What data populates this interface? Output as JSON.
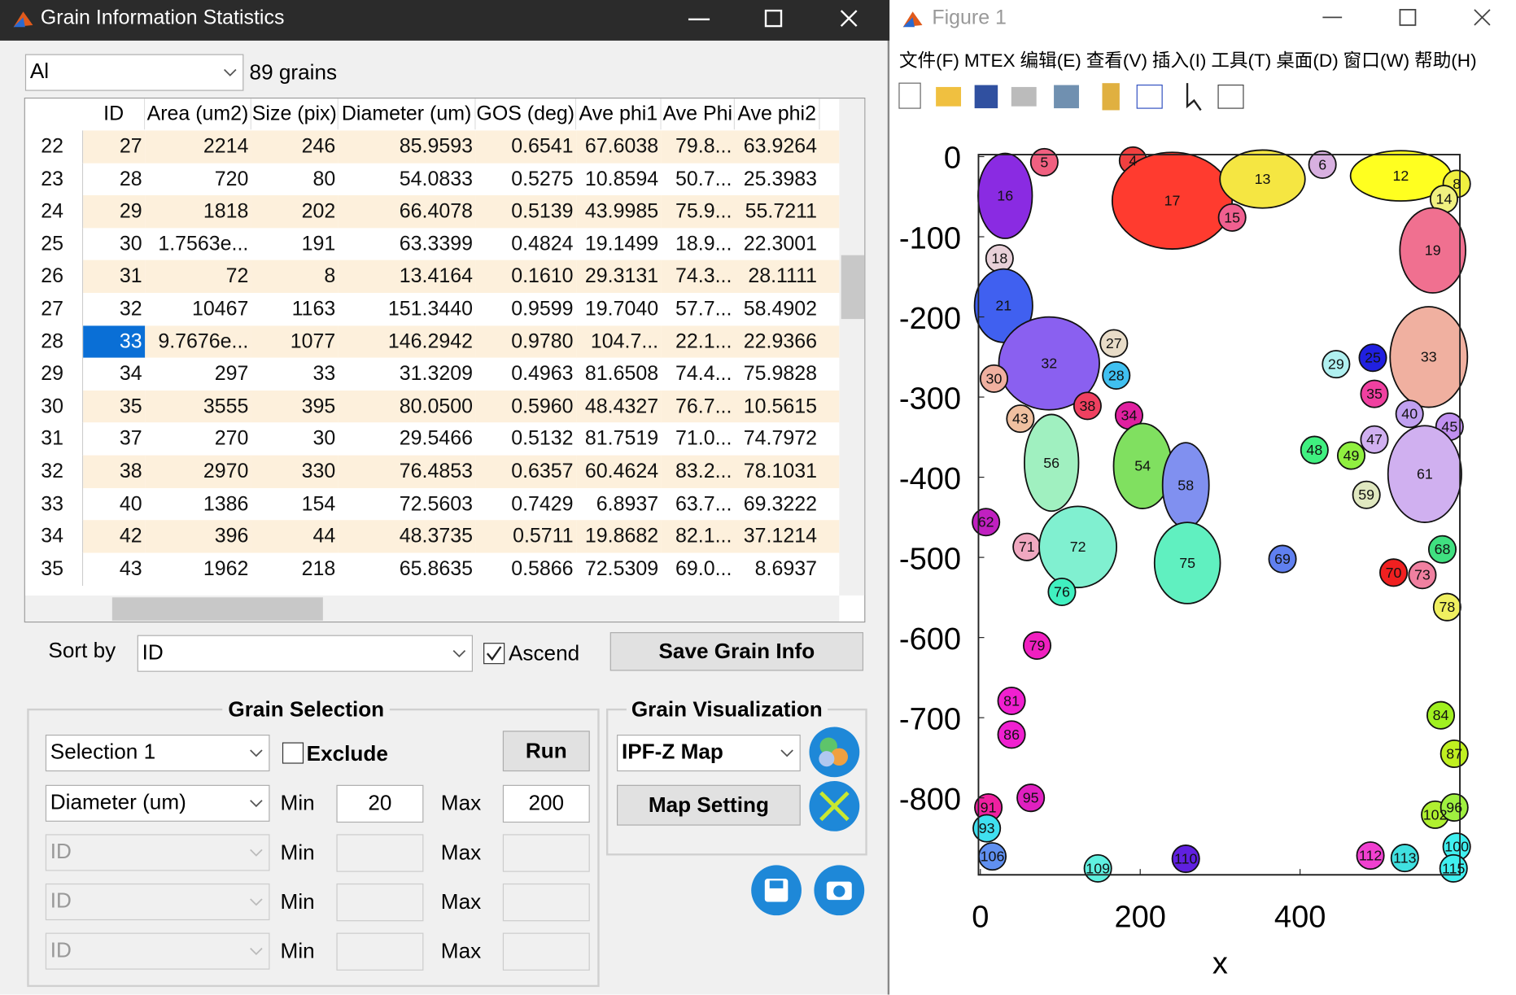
{
  "left_window": {
    "title": "Grain Information Statistics",
    "phase": "Al",
    "grain_count": "89 grains",
    "table": {
      "columns": [
        "ID",
        "Area (um2)",
        "Size (pix)",
        "Diameter (um)",
        "GOS (deg)",
        "Ave phi1",
        "Ave Phi",
        "Ave phi2"
      ],
      "rows": [
        [
          "22",
          "27",
          "2214",
          "246",
          "85.9593",
          "0.6541",
          "67.6038",
          "79.8...",
          "63.9264"
        ],
        [
          "23",
          "28",
          "720",
          "80",
          "54.0833",
          "0.5275",
          "10.8594",
          "50.7...",
          "25.3983"
        ],
        [
          "24",
          "29",
          "1818",
          "202",
          "66.4078",
          "0.5139",
          "43.9985",
          "75.9...",
          "55.7211"
        ],
        [
          "25",
          "30",
          "1.7563e...",
          "191",
          "63.3399",
          "0.4824",
          "19.1499",
          "18.9...",
          "22.3001"
        ],
        [
          "26",
          "31",
          "72",
          "8",
          "13.4164",
          "0.1610",
          "29.3131",
          "74.3...",
          "28.1111"
        ],
        [
          "27",
          "32",
          "10467",
          "1163",
          "151.3440",
          "0.9599",
          "19.7040",
          "57.7...",
          "58.4902"
        ],
        [
          "28",
          "33",
          "9.7676e...",
          "1077",
          "146.2942",
          "0.9780",
          "104.7...",
          "22.1...",
          "22.9366"
        ],
        [
          "29",
          "34",
          "297",
          "33",
          "31.3209",
          "0.4963",
          "81.6508",
          "74.4...",
          "75.9828"
        ],
        [
          "30",
          "35",
          "3555",
          "395",
          "80.0500",
          "0.5960",
          "48.4327",
          "76.7...",
          "10.5615"
        ],
        [
          "31",
          "37",
          "270",
          "30",
          "29.5466",
          "0.5132",
          "81.7519",
          "71.0...",
          "74.7972"
        ],
        [
          "32",
          "38",
          "2970",
          "330",
          "76.4853",
          "0.6357",
          "60.4624",
          "83.2...",
          "78.1031"
        ],
        [
          "33",
          "40",
          "1386",
          "154",
          "72.5603",
          "0.7429",
          "6.8937",
          "63.7...",
          "69.3222"
        ],
        [
          "34",
          "42",
          "396",
          "44",
          "48.3735",
          "0.5711",
          "19.8682",
          "82.1...",
          "37.1214"
        ],
        [
          "35",
          "43",
          "1962",
          "218",
          "65.8635",
          "0.5866",
          "72.5309",
          "69.0...",
          "8.6937"
        ]
      ]
    },
    "sort": {
      "label": "Sort by",
      "field": "ID",
      "ascend": "Ascend",
      "save": "Save Grain Info"
    },
    "selection": {
      "title": "Grain Selection",
      "preset": "Selection 1",
      "exclude": "Exclude",
      "run": "Run",
      "filters": [
        {
          "field": "Diameter (um)",
          "min_label": "Min",
          "min": 20,
          "max_label": "Max",
          "max": 200
        },
        {
          "field": "ID",
          "min_label": "Min",
          "max_label": "Max"
        },
        {
          "field": "ID",
          "min_label": "Min",
          "max_label": "Max"
        },
        {
          "field": "ID",
          "min_label": "Min",
          "max_label": "Max"
        }
      ]
    },
    "visualization": {
      "title": "Grain Visualization",
      "map": "IPF-Z Map",
      "setting": "Map Setting"
    }
  },
  "figure_window": {
    "title": "Figure 1",
    "menu": [
      "文件(F)",
      "MTEX",
      "编辑(E)",
      "查看(V)",
      "插入(I)",
      "工具(T)",
      "桌面(D)",
      "窗口(W)",
      "帮助(H)"
    ],
    "chart_data": {
      "type": "map",
      "xlabel": "x",
      "xlim": [
        0,
        600
      ],
      "ylim": [
        -896,
        0
      ],
      "xticks": [
        0,
        200,
        400
      ],
      "yticks": [
        0,
        -100,
        -200,
        -300,
        -400,
        -500,
        -600,
        -700,
        -800
      ],
      "grains": [
        {
          "label": "16",
          "x": 31,
          "y": -49,
          "color": "#8a2be2"
        },
        {
          "label": "5",
          "x": 80,
          "y": -7,
          "color": "#f06080"
        },
        {
          "label": "4",
          "x": 191,
          "y": -5,
          "color": "#f04040"
        },
        {
          "label": "17",
          "x": 240,
          "y": -55,
          "color": "#ff3b2f"
        },
        {
          "label": "13",
          "x": 353,
          "y": -28,
          "color": "#f5e642"
        },
        {
          "label": "6",
          "x": 428,
          "y": -10,
          "color": "#d8b0e0"
        },
        {
          "label": "12",
          "x": 526,
          "y": -24,
          "color": "#ffff20"
        },
        {
          "label": "8",
          "x": 596,
          "y": -34,
          "color": "#f0f040"
        },
        {
          "label": "14",
          "x": 580,
          "y": -53,
          "color": "#f0f080"
        },
        {
          "label": "15",
          "x": 315,
          "y": -76,
          "color": "#f06090"
        },
        {
          "label": "18",
          "x": 24,
          "y": -127,
          "color": "#e8d0d8"
        },
        {
          "label": "19",
          "x": 566,
          "y": -117,
          "color": "#f07090"
        },
        {
          "label": "21",
          "x": 29,
          "y": -186,
          "color": "#4060f0"
        },
        {
          "label": "27",
          "x": 167,
          "y": -233,
          "color": "#e8dcc8"
        },
        {
          "label": "32",
          "x": 86,
          "y": -258,
          "color": "#8a60f0"
        },
        {
          "label": "28",
          "x": 170,
          "y": -273,
          "color": "#40c0f0"
        },
        {
          "label": "30",
          "x": 17,
          "y": -277,
          "color": "#f0b0a0"
        },
        {
          "label": "29",
          "x": 445,
          "y": -259,
          "color": "#b0f0f0"
        },
        {
          "label": "25",
          "x": 491,
          "y": -251,
          "color": "#2020e0"
        },
        {
          "label": "33",
          "x": 561,
          "y": -250,
          "color": "#f0b0a0"
        },
        {
          "label": "35",
          "x": 493,
          "y": -296,
          "color": "#f040a0"
        },
        {
          "label": "38",
          "x": 134,
          "y": -311,
          "color": "#f04060"
        },
        {
          "label": "43",
          "x": 50,
          "y": -327,
          "color": "#f0c0a0"
        },
        {
          "label": "34",
          "x": 186,
          "y": -323,
          "color": "#e020a0"
        },
        {
          "label": "40",
          "x": 537,
          "y": -321,
          "color": "#c0a0f0"
        },
        {
          "label": "45",
          "x": 587,
          "y": -337,
          "color": "#c090f0"
        },
        {
          "label": "47",
          "x": 493,
          "y": -353,
          "color": "#d0b0f0"
        },
        {
          "label": "56",
          "x": 89,
          "y": -382,
          "color": "#a0f0c0"
        },
        {
          "label": "54",
          "x": 203,
          "y": -386,
          "color": "#80e060"
        },
        {
          "label": "49",
          "x": 464,
          "y": -373,
          "color": "#90f040"
        },
        {
          "label": "48",
          "x": 418,
          "y": -366,
          "color": "#40f080"
        },
        {
          "label": "61",
          "x": 556,
          "y": -396,
          "color": "#d0b0f0"
        },
        {
          "label": "58",
          "x": 257,
          "y": -410,
          "color": "#8090f0"
        },
        {
          "label": "59",
          "x": 483,
          "y": -422,
          "color": "#e0e8c0"
        },
        {
          "label": "62",
          "x": 7,
          "y": -456,
          "color": "#c020c0"
        },
        {
          "label": "71",
          "x": 58,
          "y": -487,
          "color": "#f0a8c0"
        },
        {
          "label": "72",
          "x": 122,
          "y": -487,
          "color": "#80f0d0"
        },
        {
          "label": "75",
          "x": 259,
          "y": -507,
          "color": "#60f0c0"
        },
        {
          "label": "69",
          "x": 378,
          "y": -502,
          "color": "#6080f0"
        },
        {
          "label": "68",
          "x": 578,
          "y": -490,
          "color": "#40e080"
        },
        {
          "label": "70",
          "x": 517,
          "y": -519,
          "color": "#f02020"
        },
        {
          "label": "73",
          "x": 553,
          "y": -522,
          "color": "#f080a0"
        },
        {
          "label": "76",
          "x": 102,
          "y": -543,
          "color": "#40f0c0"
        },
        {
          "label": "78",
          "x": 584,
          "y": -562,
          "color": "#f0f060"
        },
        {
          "label": "79",
          "x": 71,
          "y": -610,
          "color": "#f020c0"
        },
        {
          "label": "81",
          "x": 39,
          "y": -679,
          "color": "#f020d0"
        },
        {
          "label": "84",
          "x": 576,
          "y": -697,
          "color": "#a0f020"
        },
        {
          "label": "86",
          "x": 39,
          "y": -721,
          "color": "#f020d0"
        },
        {
          "label": "87",
          "x": 593,
          "y": -745,
          "color": "#c0f020"
        },
        {
          "label": "95",
          "x": 63,
          "y": -800,
          "color": "#e020c0"
        },
        {
          "label": "91",
          "x": 10,
          "y": -812,
          "color": "#f020a0"
        },
        {
          "label": "93",
          "x": 8,
          "y": -838,
          "color": "#40e0f0"
        },
        {
          "label": "102",
          "x": 569,
          "y": -821,
          "color": "#b0f030"
        },
        {
          "label": "96",
          "x": 593,
          "y": -812,
          "color": "#a0f040"
        },
        {
          "label": "100",
          "x": 596,
          "y": -861,
          "color": "#40f0f0"
        },
        {
          "label": "106",
          "x": 15,
          "y": -873,
          "color": "#6090f0"
        },
        {
          "label": "109",
          "x": 147,
          "y": -888,
          "color": "#60f0e0"
        },
        {
          "label": "110",
          "x": 257,
          "y": -876,
          "color": "#6020e0"
        },
        {
          "label": "112",
          "x": 488,
          "y": -872,
          "color": "#f040d0"
        },
        {
          "label": "113",
          "x": 531,
          "y": -875,
          "color": "#40e0e0"
        },
        {
          "label": "115",
          "x": 592,
          "y": -888,
          "color": "#40f0f0"
        }
      ]
    }
  }
}
